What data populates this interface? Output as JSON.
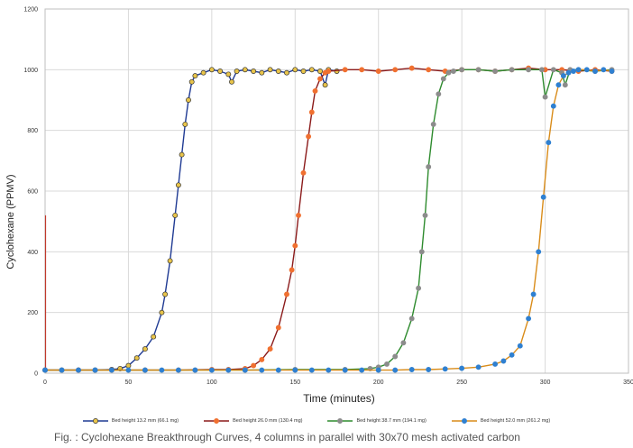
{
  "chart_data": {
    "type": "line",
    "title": "",
    "xlabel": "Time (minutes)",
    "ylabel": "Cyclohexane (PPMV)",
    "xlim": [
      0,
      350
    ],
    "ylim": [
      0,
      1200
    ],
    "xticks": [
      0,
      50,
      100,
      150,
      200,
      250,
      300,
      350
    ],
    "yticks": [
      0,
      200,
      400,
      600,
      800,
      1000,
      1200
    ],
    "grid": true,
    "legend_position": "bottom",
    "series": [
      {
        "name": "Bed height 13.2 mm (66.1 mg)",
        "line_color": "#1f3a93",
        "marker_color": "#e8c44a",
        "marker_edge": "#333333",
        "x": [
          0,
          10,
          20,
          30,
          40,
          45,
          50,
          55,
          60,
          65,
          70,
          72,
          75,
          78,
          80,
          82,
          84,
          86,
          88,
          90,
          95,
          100,
          105,
          110,
          112,
          115,
          120,
          125,
          130,
          135,
          140,
          145,
          150,
          155,
          160,
          165,
          168,
          170,
          175
        ],
        "y": [
          10,
          10,
          10,
          10,
          12,
          15,
          25,
          50,
          80,
          120,
          200,
          260,
          370,
          520,
          620,
          720,
          820,
          900,
          960,
          980,
          990,
          1000,
          995,
          985,
          960,
          995,
          1000,
          995,
          990,
          1000,
          995,
          990,
          1000,
          995,
          1000,
          995,
          950,
          1000,
          995
        ]
      },
      {
        "name": "Bed height 26.0 mm (130.4 mg)",
        "line_color": "#8b1a1a",
        "marker_color": "#f07030",
        "marker_edge": "#f07030",
        "x": [
          0,
          20,
          40,
          60,
          80,
          100,
          110,
          120,
          125,
          130,
          135,
          140,
          145,
          148,
          150,
          152,
          155,
          158,
          160,
          162,
          165,
          168,
          170,
          180,
          190,
          200,
          210,
          220,
          230,
          240,
          250,
          260,
          270,
          280,
          290,
          300,
          310,
          320,
          330,
          340
        ],
        "y": [
          10,
          10,
          10,
          10,
          10,
          12,
          12,
          15,
          25,
          45,
          80,
          150,
          260,
          340,
          420,
          520,
          660,
          780,
          860,
          930,
          970,
          990,
          995,
          1000,
          1000,
          995,
          1000,
          1005,
          1000,
          995,
          1000,
          1000,
          995,
          1000,
          1005,
          1000,
          1000,
          995,
          1000,
          995
        ]
      },
      {
        "name": "Bed height 38.7 mm (194.1 mg)",
        "line_color": "#2e8b2e",
        "marker_color": "#8c8c8c",
        "marker_edge": "#8c8c8c",
        "x": [
          0,
          30,
          60,
          90,
          120,
          150,
          180,
          195,
          200,
          205,
          210,
          215,
          220,
          224,
          226,
          228,
          230,
          233,
          236,
          239,
          242,
          245,
          250,
          260,
          270,
          280,
          290,
          298,
          300,
          305,
          310,
          312,
          315,
          320,
          330,
          340
        ],
        "y": [
          10,
          10,
          10,
          10,
          10,
          12,
          12,
          15,
          20,
          30,
          55,
          100,
          180,
          280,
          400,
          520,
          680,
          820,
          920,
          970,
          990,
          995,
          1000,
          1000,
          995,
          1000,
          1000,
          1000,
          910,
          1000,
          990,
          950,
          1000,
          1000,
          995,
          1000
        ]
      },
      {
        "name": "Bed height 52.0 mm (261.2 mg)",
        "line_color": "#d98c1a",
        "marker_color": "#2f80d1",
        "marker_edge": "#2f80d1",
        "x": [
          0,
          10,
          20,
          30,
          40,
          50,
          60,
          70,
          80,
          90,
          100,
          110,
          120,
          130,
          140,
          150,
          160,
          170,
          180,
          190,
          200,
          210,
          220,
          230,
          240,
          250,
          260,
          270,
          275,
          280,
          285,
          290,
          293,
          296,
          299,
          302,
          305,
          308,
          311,
          314,
          317,
          320,
          325,
          330,
          335,
          340
        ],
        "y": [
          10,
          10,
          10,
          10,
          10,
          10,
          10,
          10,
          10,
          10,
          10,
          10,
          10,
          10,
          10,
          10,
          10,
          10,
          10,
          10,
          10,
          10,
          12,
          12,
          14,
          16,
          20,
          30,
          40,
          60,
          90,
          180,
          260,
          400,
          580,
          760,
          880,
          950,
          980,
          990,
          995,
          1000,
          1000,
          995,
          1000,
          995
        ]
      }
    ]
  },
  "caption": "Fig. : Cyclohexane Breakthrough Curves, 4 columns in parallel with 30x70 mesh activated carbon"
}
